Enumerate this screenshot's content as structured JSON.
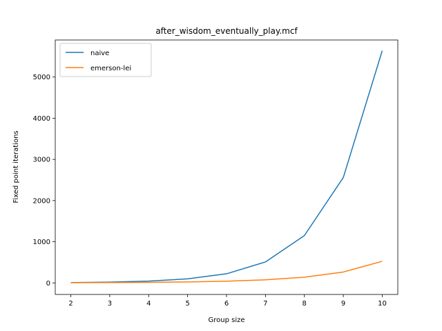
{
  "chart_data": {
    "type": "line",
    "title": "after_wisdom_eventually_play.mcf",
    "xlabel": "Group size",
    "ylabel": "Fixed point iterations",
    "x": [
      2,
      3,
      4,
      5,
      6,
      7,
      8,
      9,
      10
    ],
    "xticks": [
      "2",
      "3",
      "4",
      "5",
      "6",
      "7",
      "8",
      "9",
      "10"
    ],
    "yticks": [
      "0",
      "1000",
      "2000",
      "3000",
      "4000",
      "5000"
    ],
    "xlim": [
      1.6,
      10.4
    ],
    "ylim": [
      -280,
      5900
    ],
    "grid": false,
    "legend_position": "top-left",
    "series": [
      {
        "name": "naive",
        "color": "#1f77b4",
        "values": [
          8,
          20,
          45,
          98,
          222,
          510,
          1150,
          2560,
          5640
        ]
      },
      {
        "name": "emerson-lei",
        "color": "#ff7f0e",
        "values": [
          4,
          8,
          14,
          24,
          42,
          75,
          138,
          265,
          525
        ]
      }
    ]
  }
}
